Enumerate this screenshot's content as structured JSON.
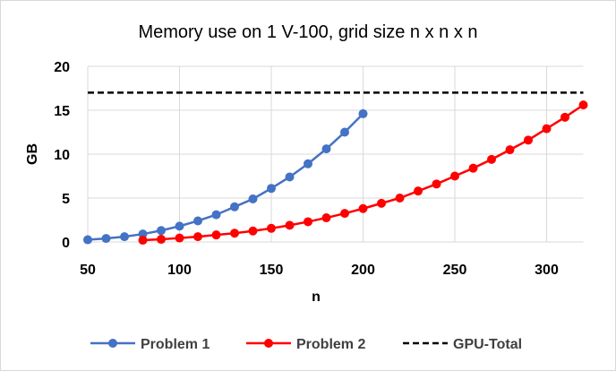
{
  "chart_data": {
    "type": "line",
    "title": "Memory use on 1 V-100, grid size n x n x n",
    "xlabel": "n",
    "ylabel": "GB",
    "xlim": [
      50,
      320
    ],
    "ylim": [
      0,
      20
    ],
    "xticks": [
      50,
      100,
      150,
      200,
      250,
      300
    ],
    "yticks": [
      0,
      5,
      10,
      15,
      20
    ],
    "grid": true,
    "legend": "bottom",
    "series": [
      {
        "name": "Problem 1",
        "color": "#4472C4",
        "marker": "circle",
        "x": [
          50,
          60,
          70,
          80,
          90,
          100,
          110,
          120,
          130,
          140,
          150,
          160,
          170,
          180,
          190,
          200
        ],
        "y": [
          0.25,
          0.4,
          0.6,
          0.9,
          1.3,
          1.8,
          2.4,
          3.1,
          4.0,
          4.9,
          6.1,
          7.4,
          8.9,
          10.6,
          12.5,
          14.6
        ]
      },
      {
        "name": "Problem 2",
        "color": "#FF0000",
        "marker": "circle",
        "x": [
          80,
          90,
          100,
          110,
          120,
          130,
          140,
          150,
          160,
          170,
          180,
          190,
          200,
          210,
          220,
          230,
          240,
          250,
          260,
          270,
          280,
          290,
          300,
          310,
          320
        ],
        "y": [
          0.2,
          0.3,
          0.45,
          0.6,
          0.8,
          1.0,
          1.25,
          1.55,
          1.9,
          2.3,
          2.75,
          3.25,
          3.8,
          4.4,
          5.0,
          5.8,
          6.6,
          7.5,
          8.4,
          9.4,
          10.5,
          11.6,
          12.9,
          14.2,
          15.6
        ]
      },
      {
        "name": "GPU-Total",
        "color": "#000000",
        "style": "dashed",
        "x": [
          50,
          320
        ],
        "y": [
          17,
          17
        ]
      }
    ]
  }
}
